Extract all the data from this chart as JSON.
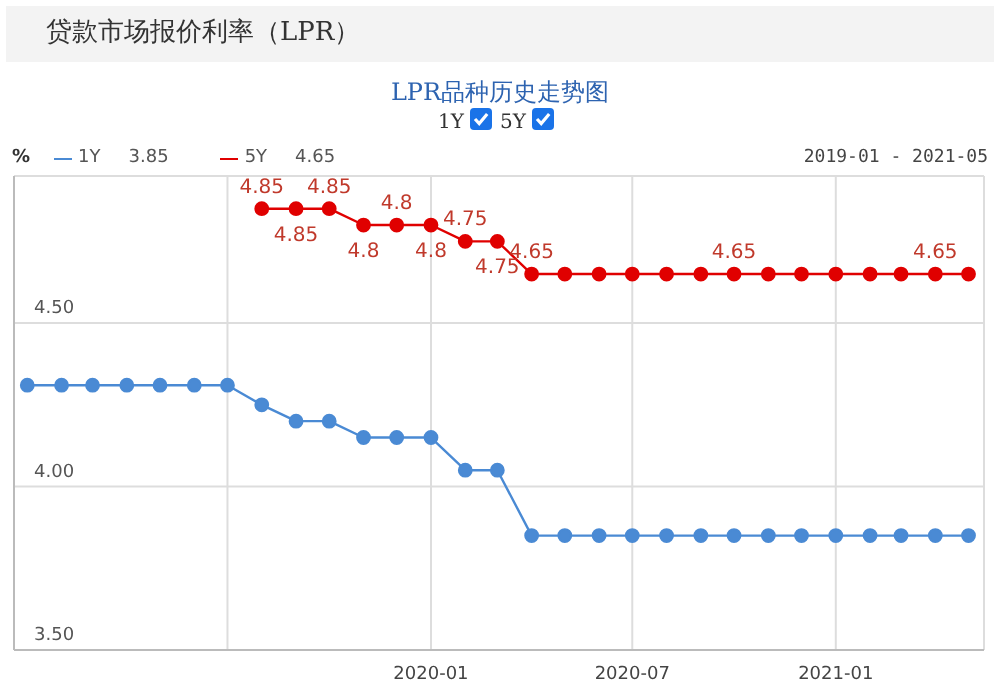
{
  "chart_data": {
    "type": "line",
    "title": "贷款市场报价利率（LPR）",
    "subtitle": "LPR品种历史走势图",
    "ylabel": "%",
    "x": [
      "2019-01",
      "2019-02",
      "2019-03",
      "2019-04",
      "2019-05",
      "2019-06",
      "2019-07",
      "2019-08",
      "2019-09",
      "2019-10",
      "2019-11",
      "2019-12",
      "2020-01",
      "2020-02",
      "2020-03",
      "2020-04",
      "2020-05",
      "2020-06",
      "2020-07",
      "2020-08",
      "2020-09",
      "2020-10",
      "2020-11",
      "2020-12",
      "2021-01",
      "2021-02",
      "2021-03",
      "2021-04",
      "2021-05"
    ],
    "series": [
      {
        "name": "1Y",
        "color": "#4a8ad4",
        "values": [
          4.31,
          4.31,
          4.31,
          4.31,
          4.31,
          4.31,
          4.31,
          4.25,
          4.2,
          4.2,
          4.15,
          4.15,
          4.15,
          4.05,
          4.05,
          3.85,
          3.85,
          3.85,
          3.85,
          3.85,
          3.85,
          3.85,
          3.85,
          3.85,
          3.85,
          3.85,
          3.85,
          3.85,
          3.85
        ]
      },
      {
        "name": "5Y",
        "color": "#e00000",
        "values": [
          null,
          null,
          null,
          null,
          null,
          null,
          null,
          4.85,
          4.85,
          4.85,
          4.8,
          4.8,
          4.8,
          4.75,
          4.75,
          4.65,
          4.65,
          4.65,
          4.65,
          4.65,
          4.65,
          4.65,
          4.65,
          4.65,
          4.65,
          4.65,
          4.65,
          4.65,
          4.65
        ],
        "value_labels": [
          null,
          null,
          null,
          null,
          null,
          null,
          null,
          "4.85",
          "4.85",
          "4.85",
          "4.8",
          "4.8",
          "4.8",
          "4.75",
          "4.75",
          "4.65",
          null,
          null,
          null,
          null,
          null,
          "4.65",
          null,
          null,
          null,
          null,
          null,
          "4.65",
          null
        ]
      }
    ],
    "annotations": [
      "3.85",
      "4.65",
      "2019-01 - 2021-05"
    ],
    "xlim": [
      "2018-12-20",
      "2021-05-15"
    ],
    "xticks": [
      {
        "value": "2019-07",
        "label": null
      },
      "2020-01",
      "2020-07",
      "2021-01"
    ],
    "ylim": [
      3.5,
      4.95
    ],
    "yticks": [
      {
        "value": 3.5,
        "label": "3.50"
      },
      {
        "value": 4.0,
        "label": "4.00"
      },
      {
        "value": 4.5,
        "label": "4.50"
      }
    ],
    "grid": true,
    "legend": "top",
    "marker": "circle",
    "line_style": "solid"
  }
}
